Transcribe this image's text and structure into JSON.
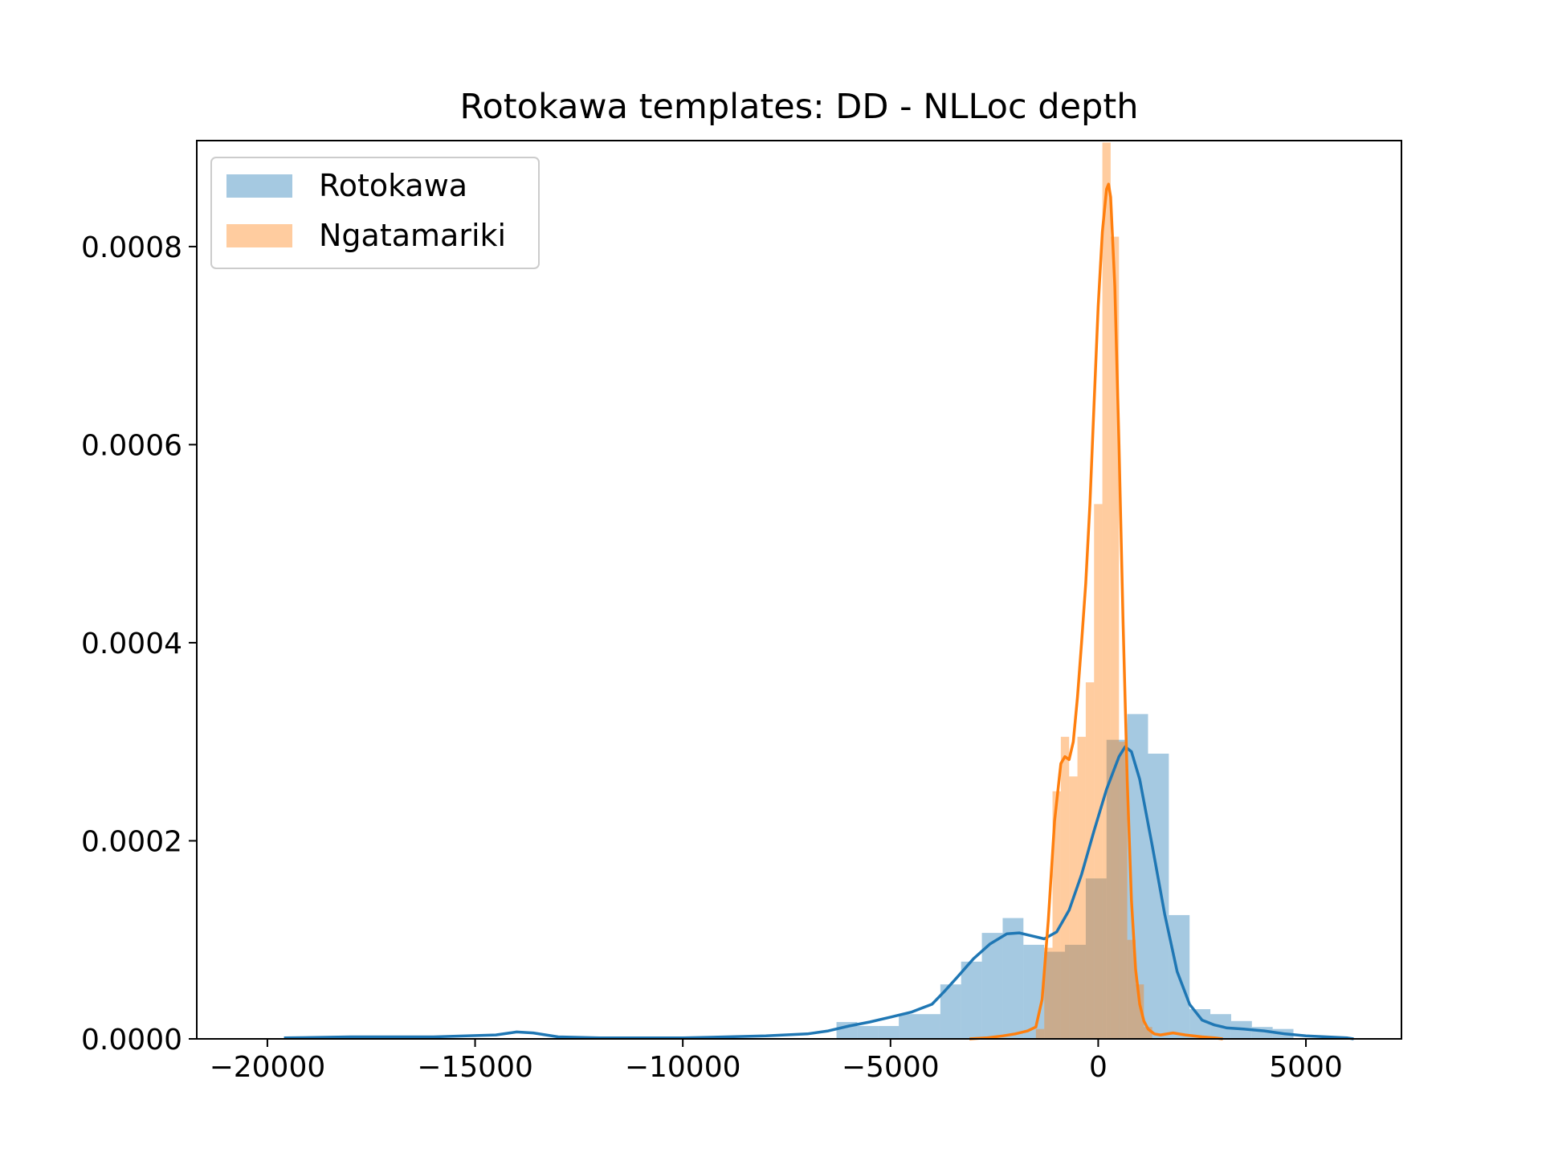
{
  "chart_data": {
    "type": "histogram",
    "title": "Rotokawa templates: DD - NLLoc depth",
    "xlabel": "",
    "ylabel": "",
    "xlim": [
      -21700,
      7300
    ],
    "ylim": [
      0,
      0.000907
    ],
    "xticks": [
      -20000,
      -15000,
      -10000,
      -5000,
      0,
      5000
    ],
    "xtick_labels": [
      "−20000",
      "−15000",
      "−10000",
      "−5000",
      "0",
      "5000"
    ],
    "yticks": [
      0,
      0.0002,
      0.0004,
      0.0006,
      0.0008
    ],
    "ytick_labels": [
      "0.0000",
      "0.0002",
      "0.0004",
      "0.0006",
      "0.0008"
    ],
    "grid": false,
    "legend_position": "top-left",
    "series": [
      {
        "name": "Rotokawa",
        "color": "#1f77b4",
        "hist_alpha": 0.4,
        "histogram": {
          "bins": [
            [
              -6300,
              -5800,
              1.7e-05
            ],
            [
              -5800,
              -5300,
              1.3e-05
            ],
            [
              -5300,
              -4800,
              1.3e-05
            ],
            [
              -4800,
              -4300,
              2.5e-05
            ],
            [
              -4300,
              -3800,
              2.5e-05
            ],
            [
              -3800,
              -3300,
              5.5e-05
            ],
            [
              -3300,
              -2800,
              7.8e-05
            ],
            [
              -2800,
              -2300,
              0.000107
            ],
            [
              -2300,
              -1800,
              0.000122
            ],
            [
              -1800,
              -1300,
              9.5e-05
            ],
            [
              -1300,
              -800,
              8.8e-05
            ],
            [
              -800,
              -300,
              9.5e-05
            ],
            [
              -300,
              200,
              0.000162
            ],
            [
              200,
              700,
              0.000302
            ],
            [
              700,
              1200,
              0.000328
            ],
            [
              1200,
              1700,
              0.000288
            ],
            [
              1700,
              2200,
              0.000125
            ],
            [
              2200,
              2700,
              3e-05
            ],
            [
              2700,
              3200,
              2.5e-05
            ],
            [
              3200,
              3700,
              1.8e-05
            ],
            [
              3700,
              4200,
              1.2e-05
            ],
            [
              4200,
              4700,
              1e-05
            ]
          ]
        },
        "kde": {
          "x": [
            -19600,
            -18000,
            -16000,
            -14500,
            -14000,
            -13600,
            -13000,
            -12000,
            -10000,
            -8000,
            -7000,
            -6500,
            -6000,
            -5500,
            -5000,
            -4500,
            -4000,
            -3700,
            -3400,
            -3000,
            -2600,
            -2200,
            -1900,
            -1600,
            -1300,
            -1000,
            -700,
            -400,
            -100,
            200,
            500,
            650,
            800,
            1000,
            1300,
            1600,
            1900,
            2200,
            2500,
            2800,
            3100,
            3500,
            4000,
            4500,
            5000,
            5500,
            6000,
            6150
          ],
          "y": [
            1e-06,
            2e-06,
            2e-06,
            4e-06,
            7e-06,
            6e-06,
            2e-06,
            1e-06,
            1e-06,
            3e-06,
            5e-06,
            8e-06,
            1.3e-05,
            1.7e-05,
            2.2e-05,
            2.7e-05,
            3.5e-05,
            4.8e-05,
            6.2e-05,
            8.1e-05,
            9.6e-05,
            0.000106,
            0.000107,
            0.000104,
            0.000101,
            0.000108,
            0.00013,
            0.000166,
            0.00021,
            0.000252,
            0.000285,
            0.000295,
            0.00029,
            0.000262,
            0.000195,
            0.000126,
            6.8e-05,
            3.5e-05,
            1.9e-05,
            1.4e-05,
            1.1e-05,
            1e-05,
            8e-06,
            5e-06,
            3e-06,
            2e-06,
            1e-06,
            0.0
          ]
        }
      },
      {
        "name": "Ngatamariki",
        "color": "#ff7f0e",
        "hist_alpha": 0.4,
        "histogram": {
          "bins": [
            [
              -1500,
              -1300,
              1e-05
            ],
            [
              -1300,
              -1100,
              9.2e-05
            ],
            [
              -1100,
              -900,
              0.00025
            ],
            [
              -900,
              -700,
              0.000305
            ],
            [
              -700,
              -500,
              0.000265
            ],
            [
              -500,
              -300,
              0.000305
            ],
            [
              -300,
              -100,
              0.00036
            ],
            [
              -100,
              100,
              0.00054
            ],
            [
              100,
              300,
              0.000905
            ],
            [
              300,
              500,
              0.00081
            ],
            [
              500,
              700,
              0.0003
            ],
            [
              700,
              900,
              0.0001
            ],
            [
              900,
              1100,
              5.5e-05
            ],
            [
              1100,
              1300,
              1.2e-05
            ]
          ]
        },
        "kde": {
          "x": [
            -3100,
            -2700,
            -2300,
            -2000,
            -1700,
            -1500,
            -1350,
            -1200,
            -1050,
            -900,
            -800,
            -700,
            -600,
            -500,
            -400,
            -300,
            -200,
            -100,
            0,
            100,
            200,
            250,
            300,
            400,
            500,
            600,
            700,
            800,
            900,
            1000,
            1100,
            1200,
            1350,
            1500,
            1800,
            2100,
            2500,
            2800,
            3000
          ],
          "y": [
            0.0,
            1e-06,
            3e-06,
            5e-06,
            8e-06,
            1.2e-05,
            4e-05,
            0.00012,
            0.00022,
            0.000278,
            0.000285,
            0.000282,
            0.0003,
            0.000345,
            0.0004,
            0.00046,
            0.00054,
            0.00064,
            0.00074,
            0.000815,
            0.000858,
            0.000863,
            0.00085,
            0.00076,
            0.0006,
            0.00042,
            0.00026,
            0.00014,
            7e-05,
            3.5e-05,
            1.8e-05,
            1e-05,
            5e-06,
            4e-06,
            6e-06,
            4e-06,
            2e-06,
            1e-06,
            0.0
          ]
        }
      }
    ]
  }
}
